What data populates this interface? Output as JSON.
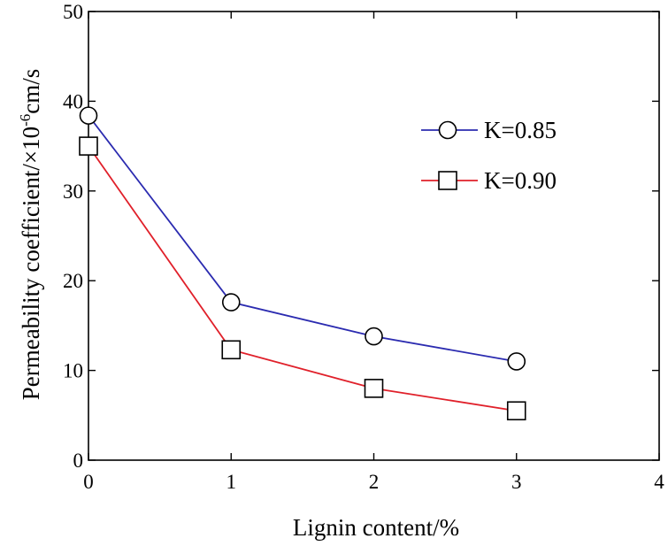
{
  "chart_data": {
    "type": "line",
    "title": "",
    "xlabel": "Lignin content/%",
    "ylabel_main": "Permeability coefficient/×10",
    "ylabel_exp": "-6",
    "ylabel_unit": "cm/s",
    "xlim": [
      0,
      4
    ],
    "ylim": [
      0,
      50
    ],
    "xticks": [
      "0",
      "1",
      "2",
      "3",
      "4"
    ],
    "yticks": [
      "0",
      "10",
      "20",
      "30",
      "40",
      "50"
    ],
    "grid": false,
    "legend_position": "upper-right",
    "series": [
      {
        "name": "K=0.85",
        "marker": "circle",
        "color": "#2b2bb0",
        "x": [
          0,
          1,
          2,
          3
        ],
        "y": [
          38.4,
          17.6,
          13.8,
          11.0
        ]
      },
      {
        "name": "K=0.90",
        "marker": "square",
        "color": "#e0202a",
        "x": [
          0,
          1,
          2,
          3
        ],
        "y": [
          35.0,
          12.3,
          8.0,
          5.5
        ]
      }
    ]
  }
}
